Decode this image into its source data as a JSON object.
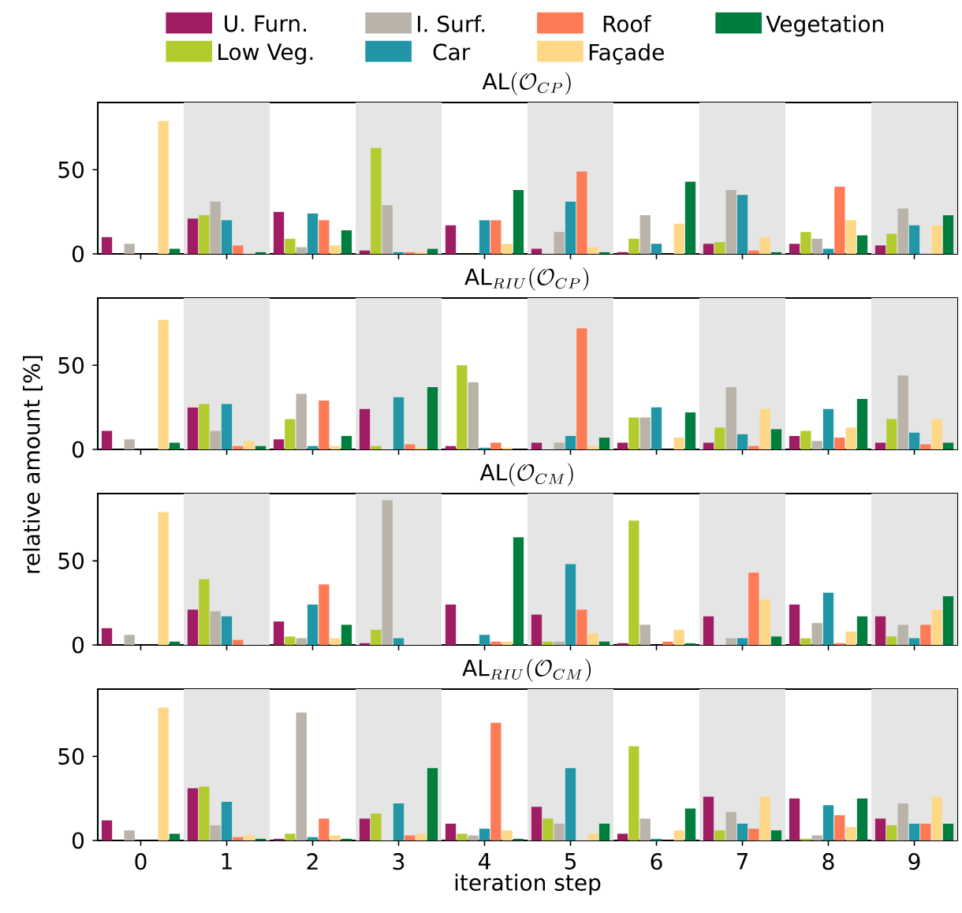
{
  "chart_data": [
    {
      "type": "bar",
      "title": "\\mbox{AL}(\\mathcal{O}_{CP})",
      "categories": [
        "0",
        "1",
        "2",
        "3",
        "4",
        "5",
        "6",
        "7",
        "8",
        "9"
      ],
      "ylim": [
        0,
        90
      ],
      "yticks": [
        0,
        50
      ],
      "tick_labels": "y",
      "legend": "top",
      "series": [
        {
          "name": "U. Furn.",
          "color": "#a01c63",
          "values": [
            10,
            21,
            25,
            2,
            17,
            3,
            1,
            6,
            6,
            5
          ]
        },
        {
          "name": "Low Veg.",
          "color": "#b3cb2e",
          "values": [
            0,
            23,
            9,
            63,
            0,
            0,
            9,
            7,
            13,
            12
          ]
        },
        {
          "name": "I. Surf.",
          "color": "#b9b3aa",
          "values": [
            6,
            31,
            4,
            29,
            0,
            13,
            23,
            38,
            9,
            27
          ]
        },
        {
          "name": "Car",
          "color": "#2196a6",
          "values": [
            0,
            20,
            24,
            1,
            20,
            31,
            6,
            35,
            3,
            17
          ]
        },
        {
          "name": "Roof",
          "color": "#fe7b55",
          "values": [
            0,
            5,
            20,
            1,
            20,
            49,
            0,
            2,
            40,
            0
          ]
        },
        {
          "name": "Façade",
          "color": "#ffd887",
          "values": [
            79,
            0,
            5,
            1,
            6,
            4,
            18,
            10,
            20,
            17
          ]
        },
        {
          "name": "Vegetation",
          "color": "#007e3e",
          "values": [
            3,
            1,
            14,
            3,
            38,
            1,
            43,
            1,
            11,
            23
          ]
        }
      ]
    },
    {
      "type": "bar",
      "title": "\\mbox{AL}_{RIU}(\\mathcal{O}_{CP})",
      "ylabel": "relative amount [%]",
      "categories": [
        "0",
        "1",
        "2",
        "3",
        "4",
        "5",
        "6",
        "7",
        "8",
        "9"
      ],
      "ylim": [
        0,
        90
      ],
      "yticks": [
        0,
        50
      ],
      "tick_labels": "y",
      "series": [
        {
          "color": "#a01c63",
          "values": [
            11,
            25,
            6,
            24,
            2,
            4,
            4,
            4,
            8,
            4
          ]
        },
        {
          "color": "#b3cb2e",
          "values": [
            0,
            27,
            18,
            2,
            50,
            0,
            19,
            13,
            11,
            18
          ]
        },
        {
          "color": "#b9b3aa",
          "values": [
            6,
            11,
            33,
            0,
            40,
            4,
            19,
            37,
            5,
            44
          ]
        },
        {
          "color": "#2196a6",
          "values": [
            0,
            27,
            2,
            31,
            1,
            8,
            25,
            9,
            24,
            10
          ]
        },
        {
          "color": "#fe7b55",
          "values": [
            0,
            2,
            29,
            3,
            4,
            72,
            0,
            2,
            7,
            3
          ]
        },
        {
          "color": "#ffd887",
          "values": [
            77,
            5,
            2,
            1,
            1,
            2,
            7,
            24,
            13,
            18
          ]
        },
        {
          "color": "#007e3e",
          "values": [
            4,
            2,
            8,
            37,
            0,
            7,
            22,
            12,
            30,
            4
          ]
        }
      ]
    },
    {
      "type": "bar",
      "title": "\\mbox{AL}(\\mathcal{O}_{CM})",
      "categories": [
        "0",
        "1",
        "2",
        "3",
        "4",
        "5",
        "6",
        "7",
        "8",
        "9"
      ],
      "ylim": [
        0,
        90
      ],
      "yticks": [
        0,
        50
      ],
      "tick_labels": "y",
      "series": [
        {
          "color": "#a01c63",
          "values": [
            10,
            21,
            14,
            1,
            24,
            18,
            1,
            17,
            24,
            17
          ]
        },
        {
          "color": "#b3cb2e",
          "values": [
            0,
            39,
            5,
            9,
            0,
            2,
            74,
            0,
            4,
            5
          ]
        },
        {
          "color": "#b9b3aa",
          "values": [
            6,
            20,
            4,
            86,
            0,
            2,
            12,
            4,
            13,
            12
          ]
        },
        {
          "color": "#2196a6",
          "values": [
            0,
            17,
            24,
            4,
            6,
            48,
            0,
            4,
            31,
            4
          ]
        },
        {
          "color": "#fe7b55",
          "values": [
            0,
            3,
            36,
            0,
            2,
            21,
            2,
            43,
            1,
            12
          ]
        },
        {
          "color": "#ffd887",
          "values": [
            79,
            0,
            4,
            0,
            2,
            7,
            9,
            27,
            8,
            21
          ]
        },
        {
          "color": "#007e3e",
          "values": [
            2,
            0,
            12,
            0,
            64,
            2,
            1,
            5,
            17,
            29
          ]
        }
      ]
    },
    {
      "type": "bar",
      "title": "\\mbox{AL}_{RIU}(\\mathcal{O}_{CM})",
      "xlabel": "iteration step",
      "categories": [
        "0",
        "1",
        "2",
        "3",
        "4",
        "5",
        "6",
        "7",
        "8",
        "9"
      ],
      "ylim": [
        0,
        90
      ],
      "yticks": [
        0,
        50
      ],
      "series": [
        {
          "color": "#a01c63",
          "values": [
            12,
            31,
            1,
            13,
            10,
            20,
            4,
            26,
            25,
            13
          ]
        },
        {
          "color": "#b3cb2e",
          "values": [
            0,
            32,
            4,
            16,
            4,
            13,
            56,
            6,
            1,
            9
          ]
        },
        {
          "color": "#b9b3aa",
          "values": [
            6,
            9,
            76,
            0,
            3,
            10,
            13,
            17,
            3,
            22
          ]
        },
        {
          "color": "#2196a6",
          "values": [
            0,
            23,
            2,
            22,
            7,
            43,
            1,
            10,
            21,
            10
          ]
        },
        {
          "color": "#fe7b55",
          "values": [
            0,
            2,
            13,
            3,
            70,
            0,
            0,
            7,
            15,
            10
          ]
        },
        {
          "color": "#ffd887",
          "values": [
            79,
            3,
            3,
            4,
            6,
            4,
            6,
            26,
            8,
            26
          ]
        },
        {
          "color": "#007e3e",
          "values": [
            4,
            1,
            1,
            43,
            1,
            10,
            19,
            6,
            25,
            10
          ]
        }
      ]
    }
  ]
}
